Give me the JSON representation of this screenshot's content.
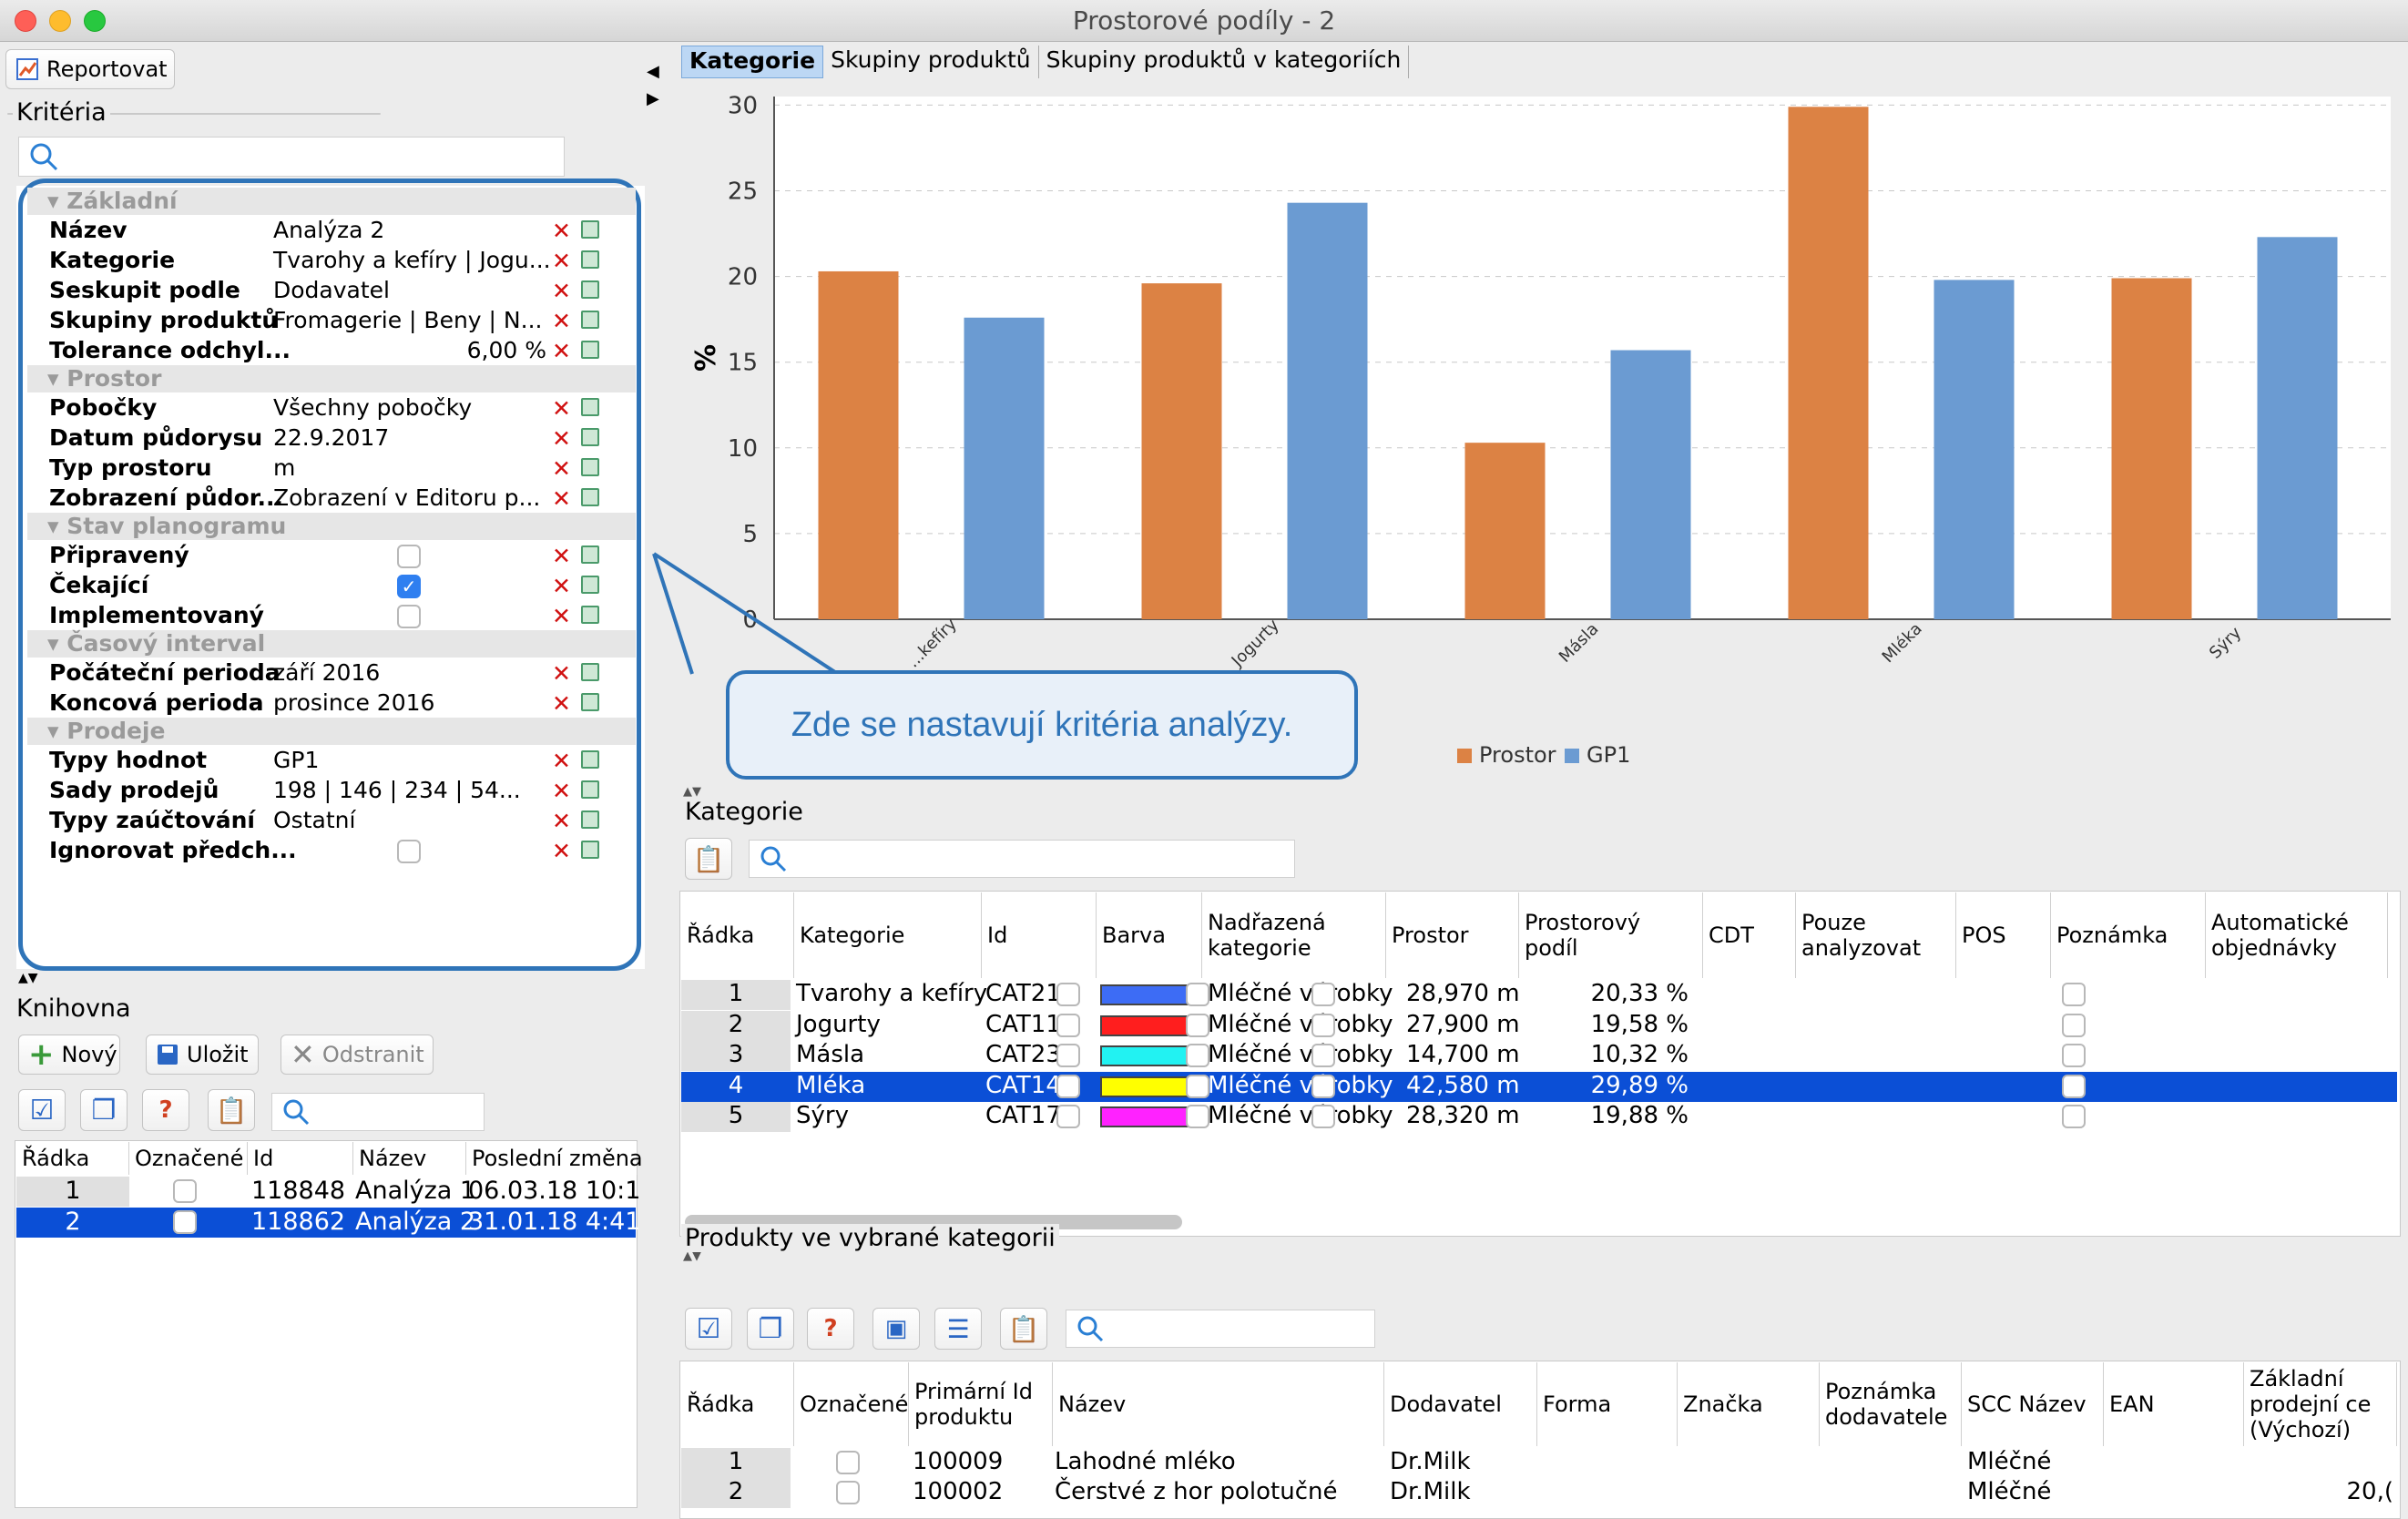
{
  "window": {
    "title": "Prostorové podíly - 2"
  },
  "toolbar": {
    "report_label": "Reportovat"
  },
  "criteria": {
    "title": "Kritéria",
    "sections": [
      {
        "name": "Základní",
        "rows": [
          {
            "key": "Název",
            "value": "Analýza 2"
          },
          {
            "key": "Kategorie",
            "value": "Tvarohy a kefíry | Jogu..."
          },
          {
            "key": "Seskupit podle",
            "value": "Dodavatel"
          },
          {
            "key": "Skupiny produktů",
            "value": "Fromagerie | Beny | N..."
          },
          {
            "key": "Tolerance odchyl...",
            "value": "6,00 %"
          }
        ]
      },
      {
        "name": "Prostor",
        "rows": [
          {
            "key": "Pobočky",
            "value": "Všechny pobočky"
          },
          {
            "key": "Datum půdorysu",
            "value": "22.9.2017"
          },
          {
            "key": "Typ prostoru",
            "value": "m"
          },
          {
            "key": "Zobrazení půdor...",
            "value": "Zobrazení v Editoru p..."
          }
        ]
      },
      {
        "name": "Stav planogramu",
        "rows": [
          {
            "key": "Připravený",
            "checked": false
          },
          {
            "key": "Čekající",
            "checked": true
          },
          {
            "key": "Implementovaný",
            "checked": false
          }
        ]
      },
      {
        "name": "Časový interval",
        "rows": [
          {
            "key": "Počáteční perioda",
            "value": "září 2016"
          },
          {
            "key": "Koncová perioda",
            "value": "prosince 2016"
          }
        ]
      },
      {
        "name": "Prodeje",
        "rows": [
          {
            "key": "Typy hodnot",
            "value": "GP1"
          },
          {
            "key": "Sady prodejů",
            "value": "198 | 146 | 234 | 54..."
          },
          {
            "key": "Typy zaúčtování",
            "value": "Ostatní"
          },
          {
            "key": "Ignorovat předch...",
            "checked": false
          }
        ]
      }
    ]
  },
  "callout": {
    "text": "Zde se nastavují kritéria analýzy."
  },
  "library": {
    "title": "Knihovna",
    "new_label": "Nový",
    "save_label": "Uložit",
    "remove_label": "Odstranit",
    "columns": [
      "Řádka",
      "Označené",
      "Id",
      "Název",
      "Poslední změna"
    ],
    "rows": [
      {
        "n": "1",
        "id": "118848",
        "name": "Analýza 1",
        "changed": "06.03.18 10:1",
        "selected": false
      },
      {
        "n": "2",
        "id": "118862",
        "name": "Analýza 2",
        "changed": "31.01.18 4:41",
        "selected": true
      }
    ]
  },
  "tabs": [
    "Kategorie",
    "Skupiny produktů",
    "Skupiny produktů v kategoriích"
  ],
  "chart_data": {
    "type": "bar",
    "categories": [
      "Tvarohy a kefíry",
      "Jogurty",
      "Másla",
      "Mléka",
      "Sýry"
    ],
    "category_labels_visible": [
      "...kefíry",
      "Jogurty",
      "Másla",
      "Mléka",
      "Sýry"
    ],
    "series": [
      {
        "name": "Prostor",
        "color": "#dc8244",
        "values": [
          20.3,
          19.6,
          10.3,
          29.9,
          19.9
        ]
      },
      {
        "name": "GP1",
        "color": "#6b9bd2",
        "values": [
          17.6,
          24.3,
          15.7,
          19.8,
          22.3
        ]
      }
    ],
    "ylabel": "%",
    "yticks": [
      0,
      5,
      10,
      15,
      20,
      25,
      30
    ],
    "ylim": [
      0,
      30.5
    ],
    "grid": true,
    "legend": "bottom-center"
  },
  "categories_table": {
    "title": "Kategorie",
    "columns": [
      "Řádka",
      "Kategorie",
      "Id",
      "Barva",
      "Nadřazená kategorie",
      "Prostor",
      "Prostorový podíl",
      "CDT",
      "Pouze analyzovat",
      "POS",
      "Poznámka",
      "Automatické objednávky"
    ],
    "rows": [
      {
        "n": "1",
        "name": "Tvarohy a kefíry",
        "id": "CAT21",
        "color": "#3d6cf5",
        "parent": "Mléčné výrobky",
        "space": "28,970 m",
        "share": "20,33 %"
      },
      {
        "n": "2",
        "name": "Jogurty",
        "id": "CAT11",
        "color": "#ff1e1e",
        "parent": "Mléčné výrobky",
        "space": "27,900 m",
        "share": "19,58 %"
      },
      {
        "n": "3",
        "name": "Másla",
        "id": "CAT23",
        "color": "#22f2f2",
        "parent": "Mléčné výrobky",
        "space": "14,700 m",
        "share": "10,32 %"
      },
      {
        "n": "4",
        "name": "Mléka",
        "id": "CAT14",
        "color": "#ffff00",
        "parent": "Mléčné výrobky",
        "space": "42,580 m",
        "share": "29,89 %",
        "selected": true
      },
      {
        "n": "5",
        "name": "Sýry",
        "id": "CAT17",
        "color": "#ff22ff",
        "parent": "Mléčné výrobky",
        "space": "28,320 m",
        "share": "19,88 %"
      }
    ]
  },
  "products_table": {
    "title": "Produkty ve vybrané kategorii",
    "columns": [
      "Řádka",
      "Označené",
      "Primární Id produktu",
      "Název",
      "Dodavatel",
      "Forma",
      "Značka",
      "Poznámka dodavatele",
      "SCC Název",
      "EAN",
      "Základní prodejní ce (Výchozí)"
    ],
    "rows": [
      {
        "n": "1",
        "id": "100009",
        "name": "Lahodné mléko",
        "supplier": "Dr.Milk",
        "scc": "Mléčné",
        "price": ""
      },
      {
        "n": "2",
        "id": "100002",
        "name": "Čerstvé z hor polotučné",
        "supplier": "Dr.Milk",
        "scc": "Mléčné",
        "price": "20,("
      }
    ]
  }
}
